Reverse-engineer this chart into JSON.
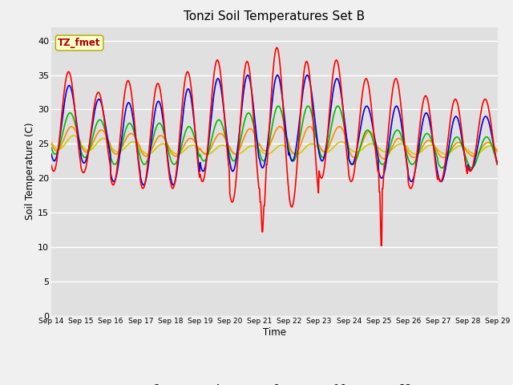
{
  "title": "Tonzi Soil Temperatures Set B",
  "xlabel": "Time",
  "ylabel": "Soil Temperature (C)",
  "ylim": [
    0,
    42
  ],
  "yticks": [
    0,
    5,
    10,
    15,
    20,
    25,
    30,
    35,
    40
  ],
  "xtick_labels": [
    "Sep 14",
    "Sep 15",
    "Sep 16",
    "Sep 17",
    "Sep 18",
    "Sep 19",
    "Sep 20",
    "Sep 21",
    "Sep 22",
    "Sep 23",
    "Sep 24",
    "Sep 25",
    "Sep 26",
    "Sep 27",
    "Sep 28",
    "Sep 29"
  ],
  "annotation_text": "TZ_fmet",
  "annotation_box_color": "#ffffcc",
  "annotation_box_edge": "#aaaa00",
  "annotation_text_color": "#aa0000",
  "line_colors": {
    "-2cm": "#ff0000",
    "-4cm": "#0000dd",
    "-8cm": "#00bb00",
    "-16cm": "#ff8800",
    "-32cm": "#cccc00"
  },
  "plot_bg_color": "#e0e0e0",
  "fig_bg_color": "#f0f0f0",
  "grid_color": "#ffffff"
}
